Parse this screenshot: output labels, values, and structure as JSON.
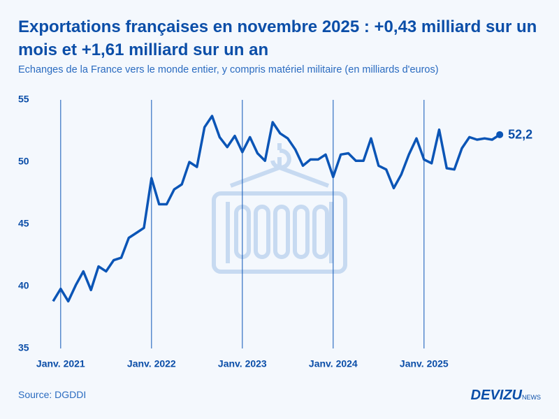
{
  "chart_data": {
    "type": "line",
    "title": "Exportations françaises en novembre 2025 : +0,43 milliard sur un mois et +1,61 milliard sur un an",
    "subtitle": "Echanges de la France vers le monde entier, y compris matériel militaire (en milliards d'euros)",
    "categories": [
      null,
      "Janv. 2021",
      null,
      null,
      null,
      null,
      null,
      null,
      null,
      null,
      null,
      null,
      null,
      "Janv. 2022",
      null,
      null,
      null,
      null,
      null,
      null,
      null,
      null,
      null,
      null,
      null,
      "Janv. 2023",
      null,
      null,
      null,
      null,
      null,
      null,
      null,
      null,
      null,
      null,
      null,
      "Janv. 2024",
      null,
      null,
      null,
      null,
      null,
      null,
      null,
      null,
      null,
      null,
      null,
      "Janv. 2025",
      null,
      null,
      null,
      null,
      null,
      null,
      null,
      null,
      null,
      null
    ],
    "values": [
      38.8,
      39.8,
      38.8,
      40.1,
      41.2,
      39.7,
      41.6,
      41.2,
      42.1,
      42.3,
      43.9,
      44.3,
      44.7,
      48.7,
      46.6,
      46.6,
      47.8,
      48.2,
      50.0,
      49.6,
      52.8,
      53.7,
      52.0,
      51.2,
      52.1,
      50.8,
      52.0,
      50.7,
      50.1,
      53.2,
      52.3,
      51.9,
      51.0,
      49.7,
      50.2,
      50.2,
      50.6,
      48.8,
      50.6,
      50.7,
      50.1,
      50.1,
      51.9,
      49.7,
      49.4,
      47.9,
      49.0,
      50.6,
      51.9,
      50.2,
      49.9,
      52.6,
      49.5,
      49.4,
      51.1,
      52.0,
      51.8,
      51.9,
      51.8,
      52.2
    ],
    "value_labels": [
      null,
      null,
      null,
      null,
      null,
      null,
      null,
      null,
      null,
      null,
      null,
      null,
      null,
      null,
      null,
      null,
      null,
      null,
      null,
      null,
      null,
      null,
      null,
      null,
      null,
      null,
      null,
      null,
      null,
      null,
      null,
      null,
      null,
      null,
      null,
      null,
      null,
      null,
      null,
      null,
      null,
      null,
      null,
      null,
      null,
      null,
      null,
      null,
      null,
      null,
      null,
      null,
      null,
      null,
      null,
      null,
      null,
      null,
      null,
      "52,2"
    ],
    "color": "#0b55b6",
    "ylim": [
      35,
      55
    ],
    "yticks": [
      35,
      40,
      45,
      50,
      55
    ]
  },
  "source": "Source: DGDDI",
  "brand": "DEVIZU",
  "brand_suffix": "NEWS"
}
